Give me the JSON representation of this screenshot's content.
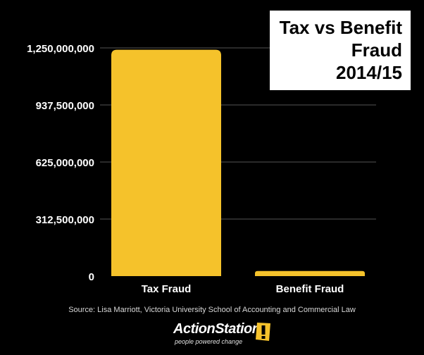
{
  "title": {
    "lines": [
      "Tax vs Benefit",
      "Fraud",
      "2014/15"
    ]
  },
  "source": "Source: Lisa Marriott, Victoria University School of Accounting and Commercial Law",
  "branding": {
    "name": "ActionStation",
    "tagline": "people powered change",
    "icon": "exclamation-icon"
  },
  "colors": {
    "background": "#000000",
    "bar": "#F5C22B",
    "gridline": "#555555"
  },
  "chart_data": {
    "type": "bar",
    "title": "Tax vs Benefit Fraud 2014/15",
    "categories": [
      "Tax Fraud",
      "Benefit Fraud"
    ],
    "values": [
      1240000000,
      28000000
    ],
    "ylim": [
      0,
      1250000000
    ],
    "yticks": [
      0,
      312500000,
      625000000,
      937500000,
      1250000000
    ],
    "ytick_labels": [
      "0",
      "312,500,000",
      "625,000,000",
      "937,500,000",
      "1,250,000,000"
    ],
    "xlabel": "",
    "ylabel": "",
    "grid": true,
    "legend": "none"
  }
}
